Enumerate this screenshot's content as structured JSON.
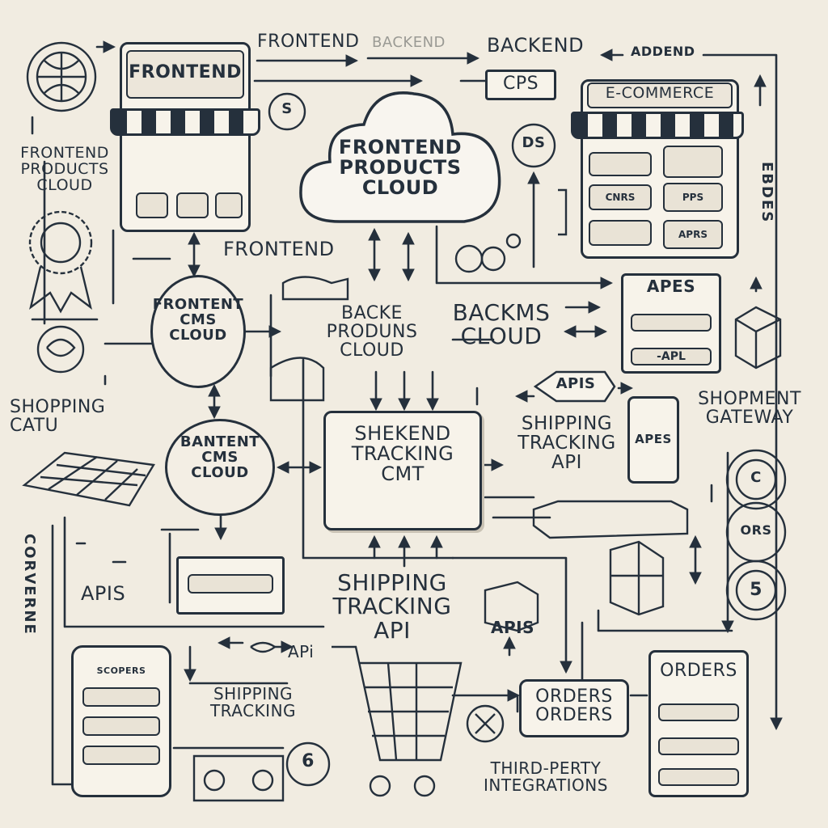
{
  "labels": {
    "frontend_sign": "FRONTEND",
    "top_frontend": "FRONTEND",
    "top_backend_faded": "BACKEND",
    "top_backend": "BACKEND",
    "top_addend": "ADDEND",
    "cps": "CPS",
    "ecommerce": "E-COMMERCE",
    "frontend_products_cloud_left": "FRONTEND\nPRODUCTS\nCLOUD",
    "cloud_main": "FRONTEND\nPRODUCTS\nCLOUD",
    "frontend_mid": "FRONTEND",
    "frontent_cms_cloud": "FRONTENT\nCMS\nCLOUD",
    "backe_produns_cloud": "BACKE\nPRODUNS\nCLOUD",
    "backms_cloud": "BACKMS\nCLOUD",
    "apes": "APES",
    "api_small": "-APL",
    "apis_diamond": "APIS",
    "shopping_catu": "SHOPPING\nCATU",
    "shopment_gateway": "SHOPMENT\nGATEWAY",
    "bantent_cms_cloud": "BANTENT\nCMS\nCLOUD",
    "shekend_tracking": "SHEKEND\nTRACKING\nCMT",
    "shipping_tracking_api_right": "SHIPPING\nTRACKING\nAPI",
    "apis_left": "APIS",
    "shipping_tracking_api_center": "SHIPPING\nTRACKING\nAPI",
    "apis_box": "APIS",
    "api_small2": "APi",
    "shipping_tracking_bottom": "SHIPPING\nTRACKING",
    "orders_orders": "ORDERS\nORDERS",
    "orders": "ORDERS",
    "third_party": "THIRD-PERTY\nINTEGRATIONS",
    "corverne": "CORVERNE",
    "ebdes": "EBDES",
    "apes_phone": "APES",
    "phone_header": "SCOPERS",
    "coin_s": "S",
    "coin_5": "5",
    "coin_6": "6",
    "coin_c": "C",
    "coin_ors": "ORS",
    "ds_icon": "DS",
    "ecom_cells": [
      "",
      "",
      "CNRS",
      "PPS",
      "",
      "APRS"
    ]
  },
  "colors": {
    "ink": "#25303c",
    "paper": "#f1ece1"
  }
}
